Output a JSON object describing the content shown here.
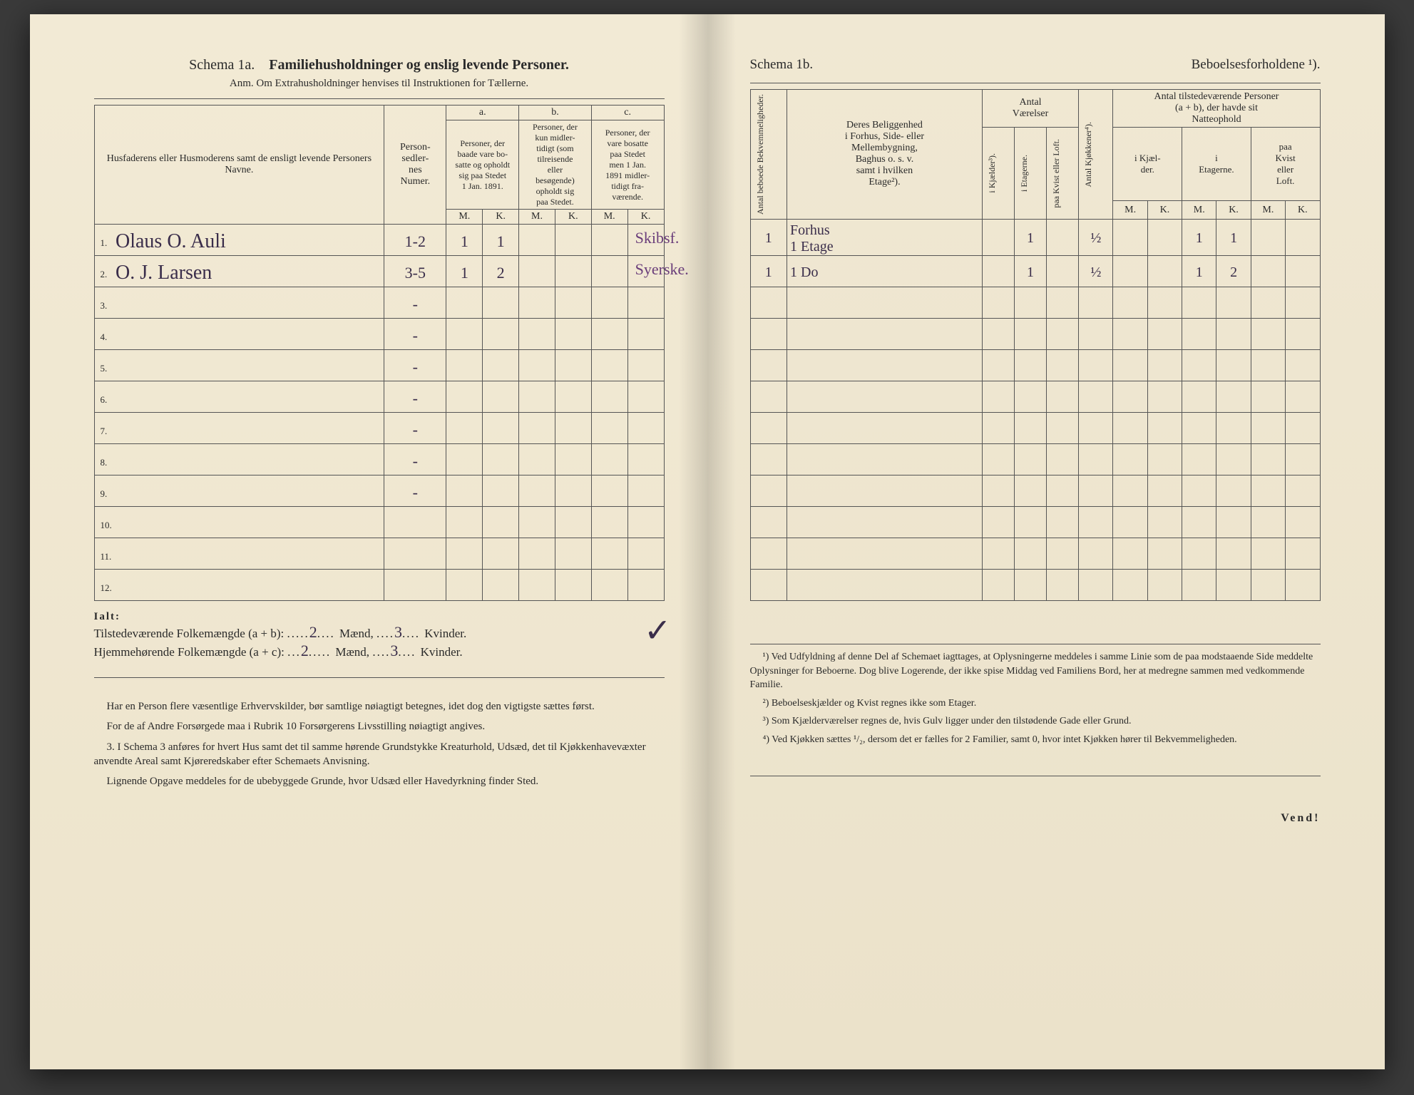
{
  "left": {
    "schema_label": "Schema 1a.",
    "title": "Familiehusholdninger og enslig levende Personer.",
    "subtitle": "Anm. Om Extrahusholdninger henvises til Instruktionen for Tællerne.",
    "col_names": "Husfaderens eller Husmoderens samt de ensligt levende Personers Navne.",
    "col_personsedler": "Person-\nsedler-\nnes\nNumer.",
    "col_a_label": "a.",
    "col_a_text": "Personer, der\nbaade vare bo-\nsatte og opholdt\nsig paa Stedet\n1 Jan. 1891.",
    "col_b_label": "b.",
    "col_b_text": "Personer, der\nkun midler-\ntidigt (som\ntilreisende\neller\nbesøgende)\nopholdt sig\npaa Stedet.",
    "col_c_label": "c.",
    "col_c_text": "Personer, der\nvare bosatte\npaa Stedet\nmen 1 Jan.\n1891 midler-\ntidigt fra-\nværende.",
    "mk_m": "M.",
    "mk_k": "K.",
    "rows": [
      {
        "n": "1.",
        "name": "Olaus O. Auli",
        "ps": "1-2",
        "am": "1",
        "ak": "1",
        "note": "Skibsf."
      },
      {
        "n": "2.",
        "name": "O. J. Larsen",
        "ps": "3-5",
        "am": "1",
        "ak": "2",
        "note": "Syerske."
      },
      {
        "n": "3.",
        "name": "",
        "ps": "-",
        "am": "",
        "ak": "",
        "note": ""
      },
      {
        "n": "4.",
        "name": "",
        "ps": "-",
        "am": "",
        "ak": "",
        "note": ""
      },
      {
        "n": "5.",
        "name": "",
        "ps": "-",
        "am": "",
        "ak": "",
        "note": ""
      },
      {
        "n": "6.",
        "name": "",
        "ps": "-",
        "am": "",
        "ak": "",
        "note": ""
      },
      {
        "n": "7.",
        "name": "",
        "ps": "-",
        "am": "",
        "ak": "",
        "note": ""
      },
      {
        "n": "8.",
        "name": "",
        "ps": "-",
        "am": "",
        "ak": "",
        "note": ""
      },
      {
        "n": "9.",
        "name": "",
        "ps": "-",
        "am": "",
        "ak": "",
        "note": ""
      },
      {
        "n": "10.",
        "name": "",
        "ps": "",
        "am": "",
        "ak": "",
        "note": ""
      },
      {
        "n": "11.",
        "name": "",
        "ps": "",
        "am": "",
        "ak": "",
        "note": ""
      },
      {
        "n": "12.",
        "name": "",
        "ps": "",
        "am": "",
        "ak": "",
        "note": ""
      }
    ],
    "ialt": "Ialt:",
    "tilstede_label": "Tilstedeværende Folkemængde (a + b):",
    "hjemme_label": "Hjemmehørende Folkemængde (a + c):",
    "maend": "Mænd,",
    "kvinder": "Kvinder.",
    "tilstede_m": "2",
    "tilstede_k": "3",
    "hjemme_m": "2",
    "hjemme_k": "3",
    "note1": "Har en Person flere væsentlige Erhvervskilder, bør samtlige nøiagtigt betegnes, idet dog den vigtigste sættes først.",
    "note2": "For de af Andre Forsørgede maa i Rubrik 10 Forsørgerens Livsstilling nøiagtigt angives.",
    "note3_num": "3.",
    "note3": "I Schema 3 anføres for hvert Hus samt det til samme hørende Grundstykke Kreaturhold, Udsæd, det til Kjøkkenhavevæxter anvendte Areal samt Kjøreredskaber efter Schemaets Anvisning.",
    "note4": "Lignende Opgave meddeles for de ubebyggede Grunde, hvor Udsæd eller Havedyrkning finder Sted."
  },
  "right": {
    "schema_label": "Schema 1b.",
    "title": "Beboelsesforholdene ¹).",
    "col_bekv": "Antal beboede\nBekvemmeligheder.",
    "col_belig": "Deres Beliggenhed\ni Forhus, Side- eller\nMellembygning,\nBaghus o. s. v.\nsamt i hvilken\nEtage²).",
    "col_vaer": "Antal\nVærelser",
    "col_kj": "i Kjælder³).",
    "col_et": "i Etagerne.",
    "col_kv": "paa Kvist eller\nLoft.",
    "col_kjok": "Antal Kjøkkener⁴).",
    "col_pers": "Antal tilstedeværende Personer\n(a + b), der havde sit\nNatteophold",
    "col_p_kj": "i Kjæl-\nder.",
    "col_p_et": "i\nEtagerne.",
    "col_p_kv": "paa\nKvist\neller\nLoft.",
    "mk_m": "M.",
    "mk_k": "K.",
    "rows": [
      {
        "bekv": "1",
        "belig": "Forhus\n1 Etage",
        "kj": "",
        "et": "1",
        "kv": "",
        "kjok": "½",
        "pkjm": "",
        "pkjk": "",
        "petm": "1",
        "petk": "1",
        "pkvm": "",
        "pkvk": ""
      },
      {
        "bekv": "1",
        "belig": "1   Do",
        "kj": "",
        "et": "1",
        "kv": "",
        "kjok": "½",
        "pkjm": "",
        "pkjk": "",
        "petm": "1",
        "petk": "2",
        "pkvm": "",
        "pkvk": ""
      },
      {
        "bekv": "",
        "belig": "",
        "kj": "",
        "et": "",
        "kv": "",
        "kjok": "",
        "pkjm": "",
        "pkjk": "",
        "petm": "",
        "petk": "",
        "pkvm": "",
        "pkvk": ""
      },
      {
        "bekv": "",
        "belig": "",
        "kj": "",
        "et": "",
        "kv": "",
        "kjok": "",
        "pkjm": "",
        "pkjk": "",
        "petm": "",
        "petk": "",
        "pkvm": "",
        "pkvk": ""
      },
      {
        "bekv": "",
        "belig": "",
        "kj": "",
        "et": "",
        "kv": "",
        "kjok": "",
        "pkjm": "",
        "pkjk": "",
        "petm": "",
        "petk": "",
        "pkvm": "",
        "pkvk": ""
      },
      {
        "bekv": "",
        "belig": "",
        "kj": "",
        "et": "",
        "kv": "",
        "kjok": "",
        "pkjm": "",
        "pkjk": "",
        "petm": "",
        "petk": "",
        "pkvm": "",
        "pkvk": ""
      },
      {
        "bekv": "",
        "belig": "",
        "kj": "",
        "et": "",
        "kv": "",
        "kjok": "",
        "pkjm": "",
        "pkjk": "",
        "petm": "",
        "petk": "",
        "pkvm": "",
        "pkvk": ""
      },
      {
        "bekv": "",
        "belig": "",
        "kj": "",
        "et": "",
        "kv": "",
        "kjok": "",
        "pkjm": "",
        "pkjk": "",
        "petm": "",
        "petk": "",
        "pkvm": "",
        "pkvk": ""
      },
      {
        "bekv": "",
        "belig": "",
        "kj": "",
        "et": "",
        "kv": "",
        "kjok": "",
        "pkjm": "",
        "pkjk": "",
        "petm": "",
        "petk": "",
        "pkvm": "",
        "pkvk": ""
      },
      {
        "bekv": "",
        "belig": "",
        "kj": "",
        "et": "",
        "kv": "",
        "kjok": "",
        "pkjm": "",
        "pkjk": "",
        "petm": "",
        "petk": "",
        "pkvm": "",
        "pkvk": ""
      },
      {
        "bekv": "",
        "belig": "",
        "kj": "",
        "et": "",
        "kv": "",
        "kjok": "",
        "pkjm": "",
        "pkjk": "",
        "petm": "",
        "petk": "",
        "pkvm": "",
        "pkvk": ""
      },
      {
        "bekv": "",
        "belig": "",
        "kj": "",
        "et": "",
        "kv": "",
        "kjok": "",
        "pkjm": "",
        "pkjk": "",
        "petm": "",
        "petk": "",
        "pkvm": "",
        "pkvk": ""
      }
    ],
    "fn1": "¹) Ved Udfyldning af denne Del af Schemaet iagttages, at Oplysningerne meddeles i samme Linie som de paa modstaaende Side meddelte Oplysninger for Beboerne. Dog blive Logerende, der ikke spise Middag ved Familiens Bord, her at medregne sammen med vedkommende Familie.",
    "fn2": "²) Beboelseskjælder og Kvist regnes ikke som Etager.",
    "fn3": "³) Som Kjælderværelser regnes de, hvis Gulv ligger under den tilstødende Gade eller Grund.",
    "fn4": "⁴) Ved Kjøkken sættes ¹/₂, dersom det er fælles for 2 Familier, samt 0, hvor intet Kjøkken hører til Bekvemmeligheden.",
    "vend": "Vend!"
  },
  "colors": {
    "paper": "#f0e8d3",
    "ink": "#2a2a2a",
    "handwriting": "#3a2d4a",
    "handwriting_purple": "#6a3d7a",
    "border": "#555555"
  }
}
